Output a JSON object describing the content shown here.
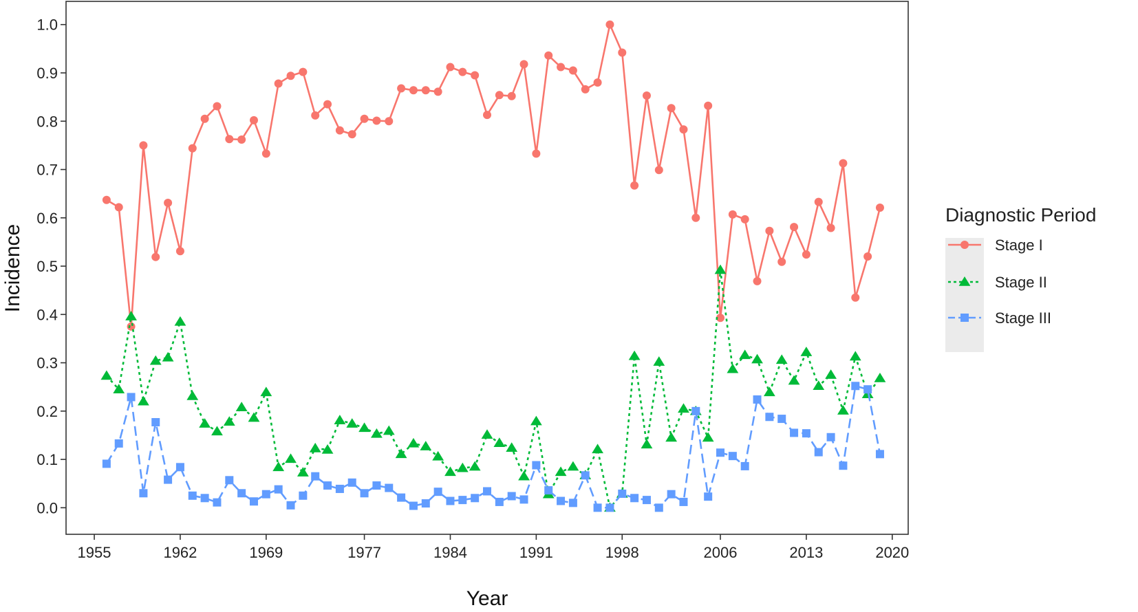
{
  "chart_data": {
    "type": "line",
    "xlabel": "Year",
    "ylabel": "Incidence",
    "xlim": [
      1952.7,
      2021.3
    ],
    "ylim": [
      -0.055,
      1.048
    ],
    "x_ticks": [
      1955,
      1962,
      1969,
      1977,
      1984,
      1991,
      1998,
      2006,
      2013,
      2020
    ],
    "y_ticks": [
      "0.0",
      "0.1",
      "0.2",
      "0.3",
      "0.4",
      "0.5",
      "0.6",
      "0.7",
      "0.8",
      "0.9",
      "1.0"
    ],
    "grid": false,
    "legend": {
      "title": "Diagnostic Period",
      "position": "right"
    },
    "x": [
      1956,
      1957,
      1958,
      1959,
      1960,
      1961,
      1962,
      1963,
      1964,
      1965,
      1966,
      1967,
      1968,
      1969,
      1970,
      1971,
      1972,
      1973,
      1974,
      1975,
      1976,
      1977,
      1978,
      1979,
      1980,
      1981,
      1982,
      1983,
      1984,
      1985,
      1986,
      1987,
      1988,
      1989,
      1990,
      1991,
      1992,
      1993,
      1994,
      1995,
      1996,
      1997,
      1998,
      1999,
      2000,
      2001,
      2002,
      2003,
      2004,
      2005,
      2006,
      2007,
      2008,
      2009,
      2010,
      2011,
      2012,
      2013,
      2014,
      2015,
      2016,
      2017,
      2018,
      2019
    ],
    "series": [
      {
        "name": "Stage I",
        "color": "#F8766D",
        "line_style": "solid",
        "marker": "circle",
        "values": [
          0.637,
          0.622,
          0.375,
          0.75,
          0.519,
          0.631,
          0.531,
          0.744,
          0.805,
          0.831,
          0.763,
          0.762,
          0.802,
          0.733,
          0.878,
          0.894,
          0.902,
          0.812,
          0.835,
          0.781,
          0.773,
          0.805,
          0.801,
          0.8,
          0.868,
          0.864,
          0.864,
          0.861,
          0.912,
          0.902,
          0.895,
          0.813,
          0.854,
          0.852,
          0.918,
          0.733,
          0.936,
          0.912,
          0.905,
          0.866,
          0.88,
          1.0,
          0.942,
          0.667,
          0.853,
          0.699,
          0.827,
          0.783,
          0.6,
          0.832,
          0.393,
          0.607,
          0.597,
          0.469,
          0.573,
          0.509,
          0.581,
          0.524,
          0.633,
          0.579,
          0.713,
          0.435,
          0.52,
          0.621
        ]
      },
      {
        "name": "Stage II",
        "color": "#00BA38",
        "line_style": "dotted",
        "marker": "triangle",
        "values": [
          0.273,
          0.245,
          0.396,
          0.22,
          0.304,
          0.311,
          0.385,
          0.231,
          0.174,
          0.158,
          0.178,
          0.208,
          0.186,
          0.239,
          0.084,
          0.101,
          0.073,
          0.123,
          0.12,
          0.181,
          0.174,
          0.165,
          0.153,
          0.159,
          0.111,
          0.133,
          0.127,
          0.106,
          0.074,
          0.082,
          0.085,
          0.151,
          0.134,
          0.124,
          0.065,
          0.179,
          0.028,
          0.074,
          0.085,
          0.067,
          0.121,
          0.0,
          0.029,
          0.314,
          0.131,
          0.302,
          0.145,
          0.205,
          0.2,
          0.145,
          0.492,
          0.287,
          0.316,
          0.307,
          0.239,
          0.306,
          0.263,
          0.322,
          0.252,
          0.275,
          0.201,
          0.313,
          0.235,
          0.268
        ]
      },
      {
        "name": "Stage III",
        "color": "#619CFF",
        "line_style": "dashed",
        "marker": "square",
        "values": [
          0.091,
          0.133,
          0.229,
          0.03,
          0.177,
          0.058,
          0.084,
          0.025,
          0.02,
          0.011,
          0.057,
          0.03,
          0.013,
          0.028,
          0.038,
          0.005,
          0.025,
          0.065,
          0.046,
          0.039,
          0.052,
          0.03,
          0.046,
          0.041,
          0.021,
          0.004,
          0.009,
          0.033,
          0.014,
          0.016,
          0.02,
          0.034,
          0.012,
          0.024,
          0.017,
          0.088,
          0.036,
          0.014,
          0.01,
          0.067,
          0.0,
          0.0,
          0.029,
          0.02,
          0.016,
          0.0,
          0.028,
          0.012,
          0.2,
          0.023,
          0.114,
          0.107,
          0.086,
          0.224,
          0.188,
          0.184,
          0.155,
          0.154,
          0.115,
          0.146,
          0.087,
          0.252,
          0.245,
          0.111
        ]
      }
    ]
  }
}
